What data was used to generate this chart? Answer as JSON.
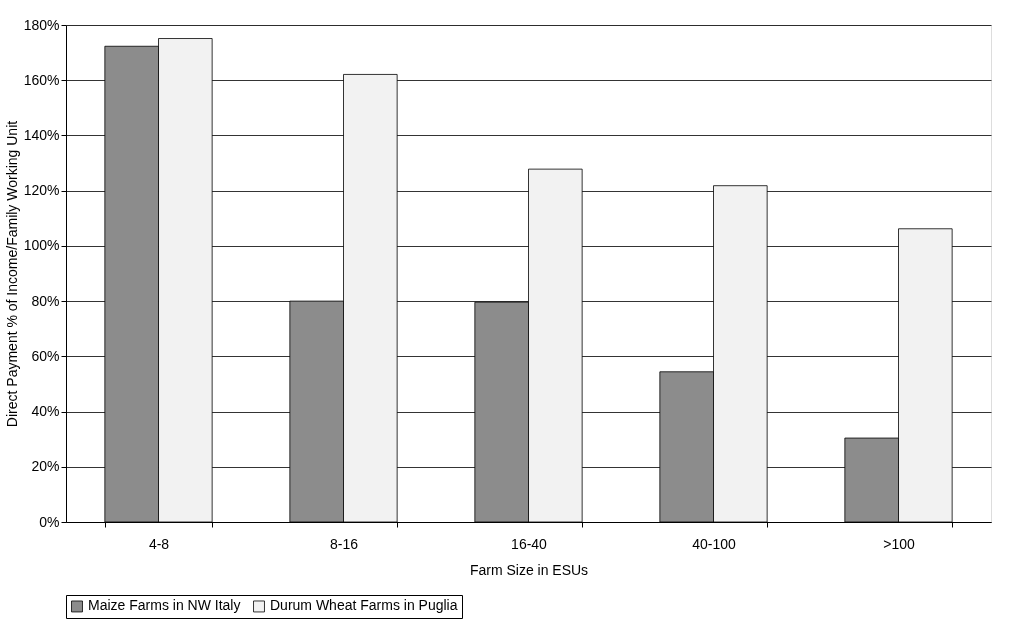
{
  "chart_data": {
    "type": "bar",
    "xlabel": "Farm Size in ESUs",
    "ylabel": "Direct Payment % of Income/Family Working Unit",
    "categories": [
      "4-8",
      "8-16",
      "16-40",
      "40-100",
      ">100"
    ],
    "series": [
      {
        "name": "Maize Farms in NW Italy",
        "color": "#8c8c8c",
        "values": [
          172.3,
          80,
          79.6,
          54.4,
          30.4
        ]
      },
      {
        "name": "Durum Wheat Farms in Puglia",
        "color": "#f2f2f2",
        "values": [
          175.1,
          162.1,
          127.8,
          121.8,
          106.2
        ]
      }
    ],
    "ylim": [
      0,
      180
    ],
    "yticks": [
      {
        "value": 0,
        "label": "0%"
      },
      {
        "value": 20,
        "label": "20%"
      },
      {
        "value": 40,
        "label": "40%"
      },
      {
        "value": 60,
        "label": "60%"
      },
      {
        "value": 80,
        "label": "80%"
      },
      {
        "value": 100,
        "label": "100%"
      },
      {
        "value": 120,
        "label": "120%"
      },
      {
        "value": 140,
        "label": "140%"
      },
      {
        "value": 160,
        "label": "160%"
      },
      {
        "value": 180,
        "label": "180%"
      }
    ],
    "grid": "y",
    "legend": "bottom"
  }
}
